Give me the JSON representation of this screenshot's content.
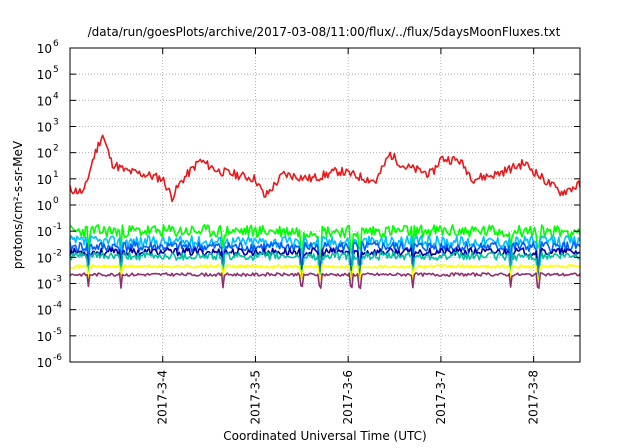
{
  "chart_data": {
    "type": "line",
    "title": "/data/run/goesPlots/archive/2017-03-08/11:00/flux/../flux/5daysMoonFluxes.txt",
    "xlabel": "Coordinated Universal Time (UTC)",
    "ylabel": "protons/cm²-s-sr-MeV",
    "y_scale": "log",
    "ylim_exponents": [
      -6,
      6
    ],
    "y_tick_base": "10",
    "y_ticks": [
      -6,
      -5,
      -4,
      -3,
      -2,
      -1,
      0,
      1,
      2,
      3,
      4,
      5,
      6
    ],
    "x_range_days": [
      "2017-3-3",
      "2017-3-8"
    ],
    "x_ticks": [
      {
        "label": "2017-3-4",
        "day": 1.0
      },
      {
        "label": "2017-3-5",
        "day": 2.0
      },
      {
        "label": "2017-3-6",
        "day": 3.0
      },
      {
        "label": "2017-3-7",
        "day": 4.0
      },
      {
        "label": "2017-3-8",
        "day": 5.0
      }
    ],
    "x_max_day": 5.5,
    "grid": true,
    "series": [
      {
        "color": "#e41a1c",
        "base": 12,
        "amp": 0.35,
        "seed": 11,
        "anchors": [
          [
            0.0,
            4
          ],
          [
            0.15,
            3
          ],
          [
            0.25,
            60
          ],
          [
            0.35,
            500
          ],
          [
            0.45,
            40
          ],
          [
            0.6,
            20
          ],
          [
            0.8,
            15
          ],
          [
            1.0,
            10
          ],
          [
            1.1,
            2
          ],
          [
            1.2,
            8
          ],
          [
            1.4,
            50
          ],
          [
            1.6,
            20
          ],
          [
            2.0,
            10
          ],
          [
            2.1,
            2
          ],
          [
            2.3,
            15
          ],
          [
            2.6,
            10
          ],
          [
            2.9,
            20
          ],
          [
            3.3,
            8
          ],
          [
            3.45,
            90
          ],
          [
            3.6,
            30
          ],
          [
            3.9,
            15
          ],
          [
            4.0,
            60
          ],
          [
            4.2,
            50
          ],
          [
            4.35,
            10
          ],
          [
            4.6,
            15
          ],
          [
            4.9,
            40
          ],
          [
            5.1,
            10
          ],
          [
            5.3,
            3
          ],
          [
            5.5,
            6
          ]
        ]
      },
      {
        "color": "#00ff00",
        "base": 0.1,
        "amp": 0.5,
        "seed": 23,
        "anchors": []
      },
      {
        "color": "#00bfff",
        "base": 0.04,
        "amp": 0.45,
        "seed": 37,
        "anchors": []
      },
      {
        "color": "#0060ff",
        "base": 0.025,
        "amp": 0.4,
        "seed": 41,
        "anchors": []
      },
      {
        "color": "#0000a0",
        "base": 0.016,
        "amp": 0.3,
        "seed": 53,
        "anchors": []
      },
      {
        "color": "#00c0a0",
        "base": 0.011,
        "amp": 0.3,
        "seed": 61,
        "anchors": []
      },
      {
        "color": "#ffff00",
        "base": 0.0045,
        "amp": 0.12,
        "seed": 71,
        "anchors": []
      },
      {
        "color": "#8e2f6e",
        "base": 0.0022,
        "amp": 0.12,
        "seed": 83,
        "anchors": []
      }
    ],
    "dips": [
      0.2,
      0.55,
      1.65,
      2.5,
      2.7,
      3.03,
      3.12,
      3.7,
      4.75,
      5.05
    ]
  }
}
